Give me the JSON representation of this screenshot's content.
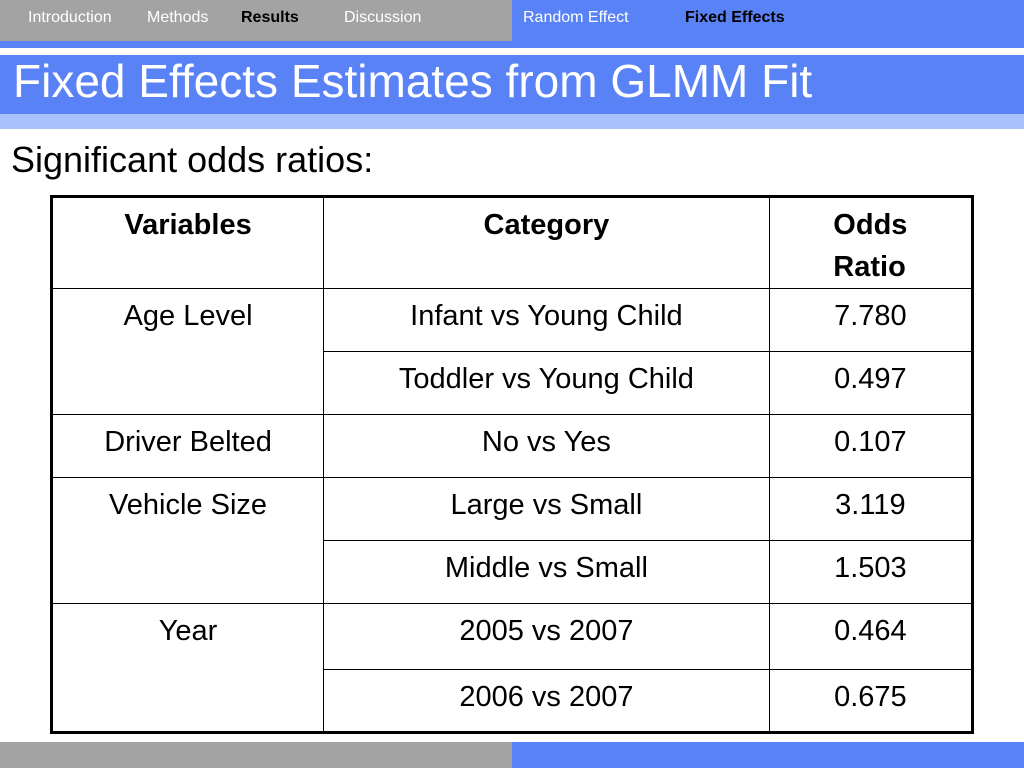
{
  "nav": {
    "left": [
      {
        "label": "Introduction",
        "active": false
      },
      {
        "label": "Methods",
        "active": false
      },
      {
        "label": "Results",
        "active": true
      },
      {
        "label": "Discussion",
        "active": false
      }
    ],
    "right": [
      {
        "label": "Random Effect",
        "active": false
      },
      {
        "label": "Fixed Effects",
        "active": true
      }
    ]
  },
  "slide": {
    "title": "Fixed Effects Estimates from GLMM Fit",
    "subtitle": "Significant odds ratios:"
  },
  "table": {
    "headers": {
      "variables": "Variables",
      "category": "Category",
      "odds_ratio_line1": "Odds",
      "odds_ratio_line2": "Ratio"
    },
    "groups": [
      {
        "variable": "Age Level",
        "rows": [
          {
            "category": "Infant vs Young Child",
            "odds_ratio": "7.780"
          },
          {
            "category": "Toddler vs Young Child",
            "odds_ratio": "0.497"
          }
        ]
      },
      {
        "variable": "Driver Belted",
        "rows": [
          {
            "category": "No vs Yes",
            "odds_ratio": "0.107"
          }
        ]
      },
      {
        "variable": "Vehicle Size",
        "rows": [
          {
            "category": "Large vs Small",
            "odds_ratio": "3.119"
          },
          {
            "category": "Middle vs Small",
            "odds_ratio": "1.503"
          }
        ]
      },
      {
        "variable": "Year",
        "rows": [
          {
            "category": "2005 vs 2007",
            "odds_ratio": "0.464"
          },
          {
            "category": "2006 vs 2007",
            "odds_ratio": "0.675"
          }
        ]
      }
    ]
  },
  "colors": {
    "nav_gray": "#a3a3a3",
    "accent_blue": "#5a82f7",
    "light_blue": "#a9c1fb"
  }
}
